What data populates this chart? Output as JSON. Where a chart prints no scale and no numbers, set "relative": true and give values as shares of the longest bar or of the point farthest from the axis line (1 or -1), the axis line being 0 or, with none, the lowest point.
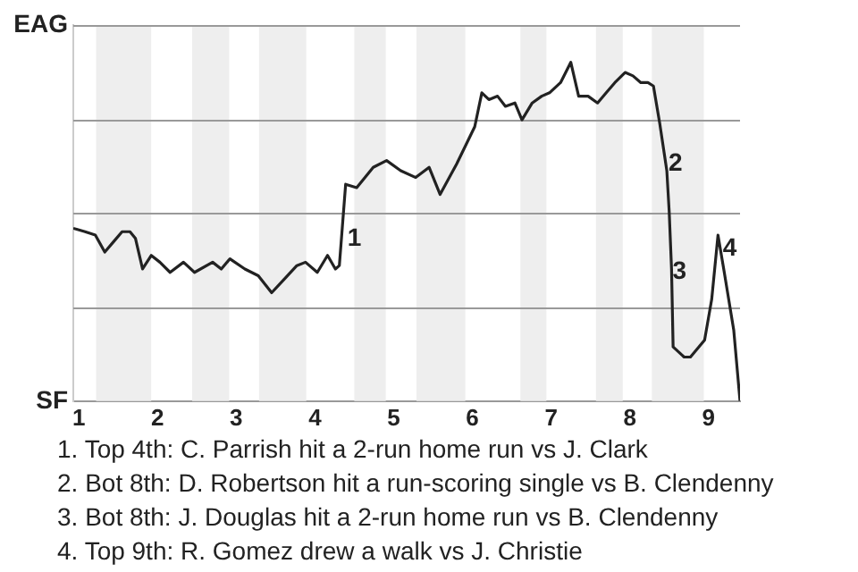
{
  "chart_data": {
    "type": "line",
    "relative": true,
    "x": [
      0.93,
      1.08,
      1.21,
      1.33,
      1.44,
      1.55,
      1.65,
      1.72,
      1.81,
      1.92,
      2.03,
      2.16,
      2.33,
      2.47,
      2.7,
      2.81,
      2.92,
      3.11,
      3.28,
      3.45,
      3.61,
      3.77,
      3.88,
      4.03,
      4.16,
      4.26,
      4.31,
      4.39,
      4.53,
      4.74,
      4.91,
      5.09,
      5.28,
      5.45,
      5.59,
      5.8,
      6.03,
      6.12,
      6.21,
      6.32,
      6.42,
      6.54,
      6.63,
      6.76,
      6.88,
      6.98,
      7.12,
      7.25,
      7.35,
      7.47,
      7.59,
      7.7,
      7.81,
      7.94,
      8.04,
      8.14,
      8.23,
      8.3,
      8.38,
      8.47,
      8.5,
      8.53,
      8.55,
      8.69,
      8.77,
      8.95,
      9.04,
      9.12,
      9.2,
      9.32,
      9.4
    ],
    "series": [
      {
        "color": "#222222",
        "values": [
          0.51,
          0.5,
          0.49,
          0.44,
          0.47,
          0.5,
          0.5,
          0.48,
          0.39,
          0.43,
          0.41,
          0.38,
          0.41,
          0.38,
          0.41,
          0.39,
          0.42,
          0.39,
          0.37,
          0.32,
          0.36,
          0.4,
          0.41,
          0.38,
          0.43,
          0.39,
          0.4,
          0.64,
          0.63,
          0.69,
          0.71,
          0.68,
          0.66,
          0.69,
          0.61,
          0.7,
          0.81,
          0.91,
          0.89,
          0.9,
          0.87,
          0.88,
          0.83,
          0.88,
          0.9,
          0.91,
          0.94,
          1,
          0.9,
          0.9,
          0.88,
          0.91,
          0.94,
          0.97,
          0.96,
          0.94,
          0.94,
          0.93,
          0.82,
          0.68,
          0.56,
          0.39,
          0.16,
          0.13,
          0.13,
          0.18,
          0.3,
          0.49,
          0.38,
          0.21,
          0
        ]
      }
    ],
    "xlim": [
      0.93,
      9.4
    ],
    "xticks": [
      1,
      2,
      3,
      4,
      5,
      6,
      7,
      8,
      9
    ],
    "grid": "y",
    "legend": false,
    "marker": "none",
    "line_style": "solid",
    "bands": [
      {
        "axis": "x",
        "from": 1.22,
        "to": 1.92,
        "color": "#eeeeee"
      },
      {
        "axis": "x",
        "from": 2.44,
        "to": 2.91,
        "color": "#eeeeee"
      },
      {
        "axis": "x",
        "from": 3.29,
        "to": 3.89,
        "color": "#eeeeee"
      },
      {
        "axis": "x",
        "from": 4.5,
        "to": 4.9,
        "color": "#eeeeee"
      },
      {
        "axis": "x",
        "from": 5.29,
        "to": 5.91,
        "color": "#eeeeee"
      },
      {
        "axis": "x",
        "from": 6.61,
        "to": 6.94,
        "color": "#eeeeee"
      },
      {
        "axis": "x",
        "from": 7.57,
        "to": 7.91,
        "color": "#eeeeee"
      },
      {
        "axis": "x",
        "from": 8.28,
        "to": 8.94,
        "color": "#eeeeee"
      }
    ],
    "annotations": [
      "EAG",
      "SF",
      {
        "text": "1",
        "x": 4.5,
        "y": 0.48
      },
      {
        "text": "2",
        "x": 8.58,
        "y": 0.7
      },
      {
        "text": "3",
        "x": 8.63,
        "y": 0.38
      },
      {
        "text": "4",
        "x": 9.27,
        "y": 0.45
      },
      "1. Top 4th: C. Parrish hit a 2-run home run vs J. Clark",
      "2. Bot 8th: D. Robertson hit a run-scoring single vs B. Clendenny",
      "3. Bot 8th: J. Douglas hit a 2-run home run vs B. Clendenny",
      "4. Top 9th: R. Gomez drew a walk vs J. Christie"
    ]
  }
}
